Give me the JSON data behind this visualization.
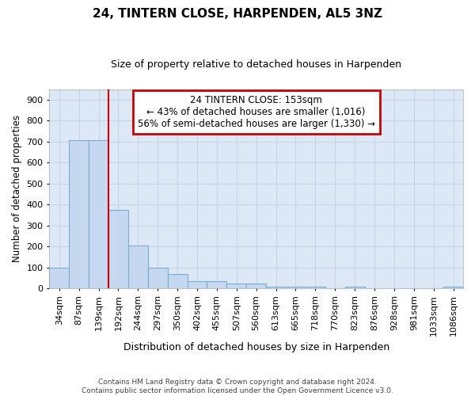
{
  "title": "24, TINTERN CLOSE, HARPENDEN, AL5 3NZ",
  "subtitle": "Size of property relative to detached houses in Harpenden",
  "xlabel": "Distribution of detached houses by size in Harpenden",
  "ylabel": "Number of detached properties",
  "categories": [
    "34sqm",
    "87sqm",
    "139sqm",
    "192sqm",
    "244sqm",
    "297sqm",
    "350sqm",
    "402sqm",
    "455sqm",
    "507sqm",
    "560sqm",
    "613sqm",
    "665sqm",
    "718sqm",
    "770sqm",
    "823sqm",
    "876sqm",
    "928sqm",
    "981sqm",
    "1033sqm",
    "1086sqm"
  ],
  "values": [
    100,
    707,
    707,
    373,
    205,
    97,
    70,
    35,
    35,
    25,
    25,
    10,
    10,
    10,
    0,
    10,
    0,
    0,
    0,
    0,
    10
  ],
  "bar_color": "#c5d8f0",
  "bar_edge_color": "#7aadd4",
  "vline_x": 2.5,
  "annotation_box_text_line1": "24 TINTERN CLOSE: 153sqm",
  "annotation_box_text_line2": "← 43% of detached houses are smaller (1,016)",
  "annotation_box_text_line3": "56% of semi-detached houses are larger (1,330) →",
  "annotation_box_color": "#ffffff",
  "annotation_box_edge_color": "#cc0000",
  "vline_color": "#cc0000",
  "grid_color": "#c8d4e8",
  "background_color": "#ffffff",
  "plot_bg_color": "#dce8f5",
  "footer_text": "Contains HM Land Registry data © Crown copyright and database right 2024.\nContains public sector information licensed under the Open Government Licence v3.0.",
  "ylim": [
    0,
    950
  ],
  "yticks": [
    0,
    100,
    200,
    300,
    400,
    500,
    600,
    700,
    800,
    900
  ],
  "title_fontsize": 11,
  "subtitle_fontsize": 9
}
